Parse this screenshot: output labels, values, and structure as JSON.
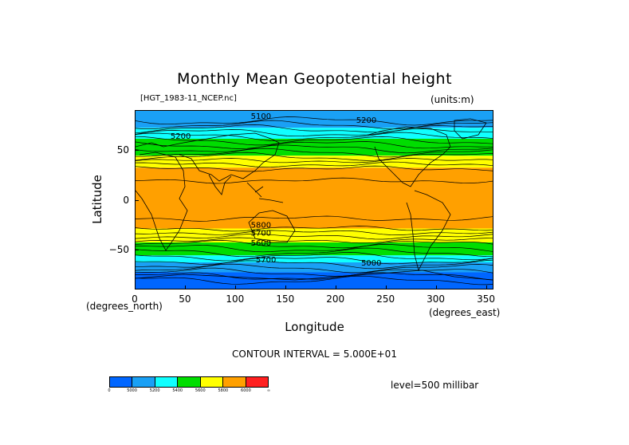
{
  "title": "Monthly Mean Geopotential height",
  "file_label": "[HGT_1983-11_NCEP.nc]",
  "units_label": "(units:m)",
  "x_axis": {
    "label": "Longitude",
    "units": "(degrees_east)",
    "ticks": [
      "0",
      "50",
      "100",
      "150",
      "200",
      "250",
      "300",
      "350"
    ],
    "tick_values": [
      0,
      50,
      100,
      150,
      200,
      250,
      300,
      350
    ],
    "range": [
      0,
      357.5
    ]
  },
  "y_axis": {
    "label": "Latitude",
    "units": "(degrees_north)",
    "ticks": [
      "50",
      "0",
      "−50"
    ],
    "tick_values": [
      50,
      0,
      -50
    ],
    "range": [
      -90,
      90
    ]
  },
  "contour_interval": "CONTOUR INTERVAL = 5.000E+01",
  "level_label": "level=500 millibar",
  "contour_labels": [
    {
      "text": "5100",
      "lon": 125,
      "lat": 82
    },
    {
      "text": "5200",
      "lon": 45,
      "lat": 62
    },
    {
      "text": "5200",
      "lon": 230,
      "lat": 78
    },
    {
      "text": "5800",
      "lon": 125,
      "lat": -27
    },
    {
      "text": "5700",
      "lon": 125,
      "lat": -35
    },
    {
      "text": "5600",
      "lon": 125,
      "lat": -45
    },
    {
      "text": "5000",
      "lon": 235,
      "lat": -65
    },
    {
      "text": "5700",
      "lon": 130,
      "lat": -62
    }
  ],
  "legend": {
    "labels": [
      "0",
      "5000",
      "5200",
      "5400",
      "5600",
      "5800",
      "6000",
      "∞"
    ],
    "colors": [
      "#0066ff",
      "#1aa0f5",
      "#10ffff",
      "#00dd00",
      "#ffff00",
      "#ffa000",
      "#ff2020"
    ]
  },
  "bands": [
    {
      "lat_from": 90,
      "lat_to": 73,
      "color": "#1aa0f5"
    },
    {
      "lat_from": 73,
      "lat_to": 62,
      "color": "#10ffff"
    },
    {
      "lat_from": 62,
      "lat_to": 45,
      "color": "#00dd00"
    },
    {
      "lat_from": 45,
      "lat_to": 33,
      "color": "#ffff00"
    },
    {
      "lat_from": 33,
      "lat_to": -28,
      "color": "#ffa000"
    },
    {
      "lat_from": -28,
      "lat_to": -42,
      "color": "#ffff00"
    },
    {
      "lat_from": -42,
      "lat_to": -55,
      "color": "#00dd00"
    },
    {
      "lat_from": -55,
      "lat_to": -62,
      "color": "#10ffff"
    },
    {
      "lat_from": -62,
      "lat_to": -72,
      "color": "#1aa0f5"
    },
    {
      "lat_from": -72,
      "lat_to": -90,
      "color": "#0066ff"
    }
  ]
}
